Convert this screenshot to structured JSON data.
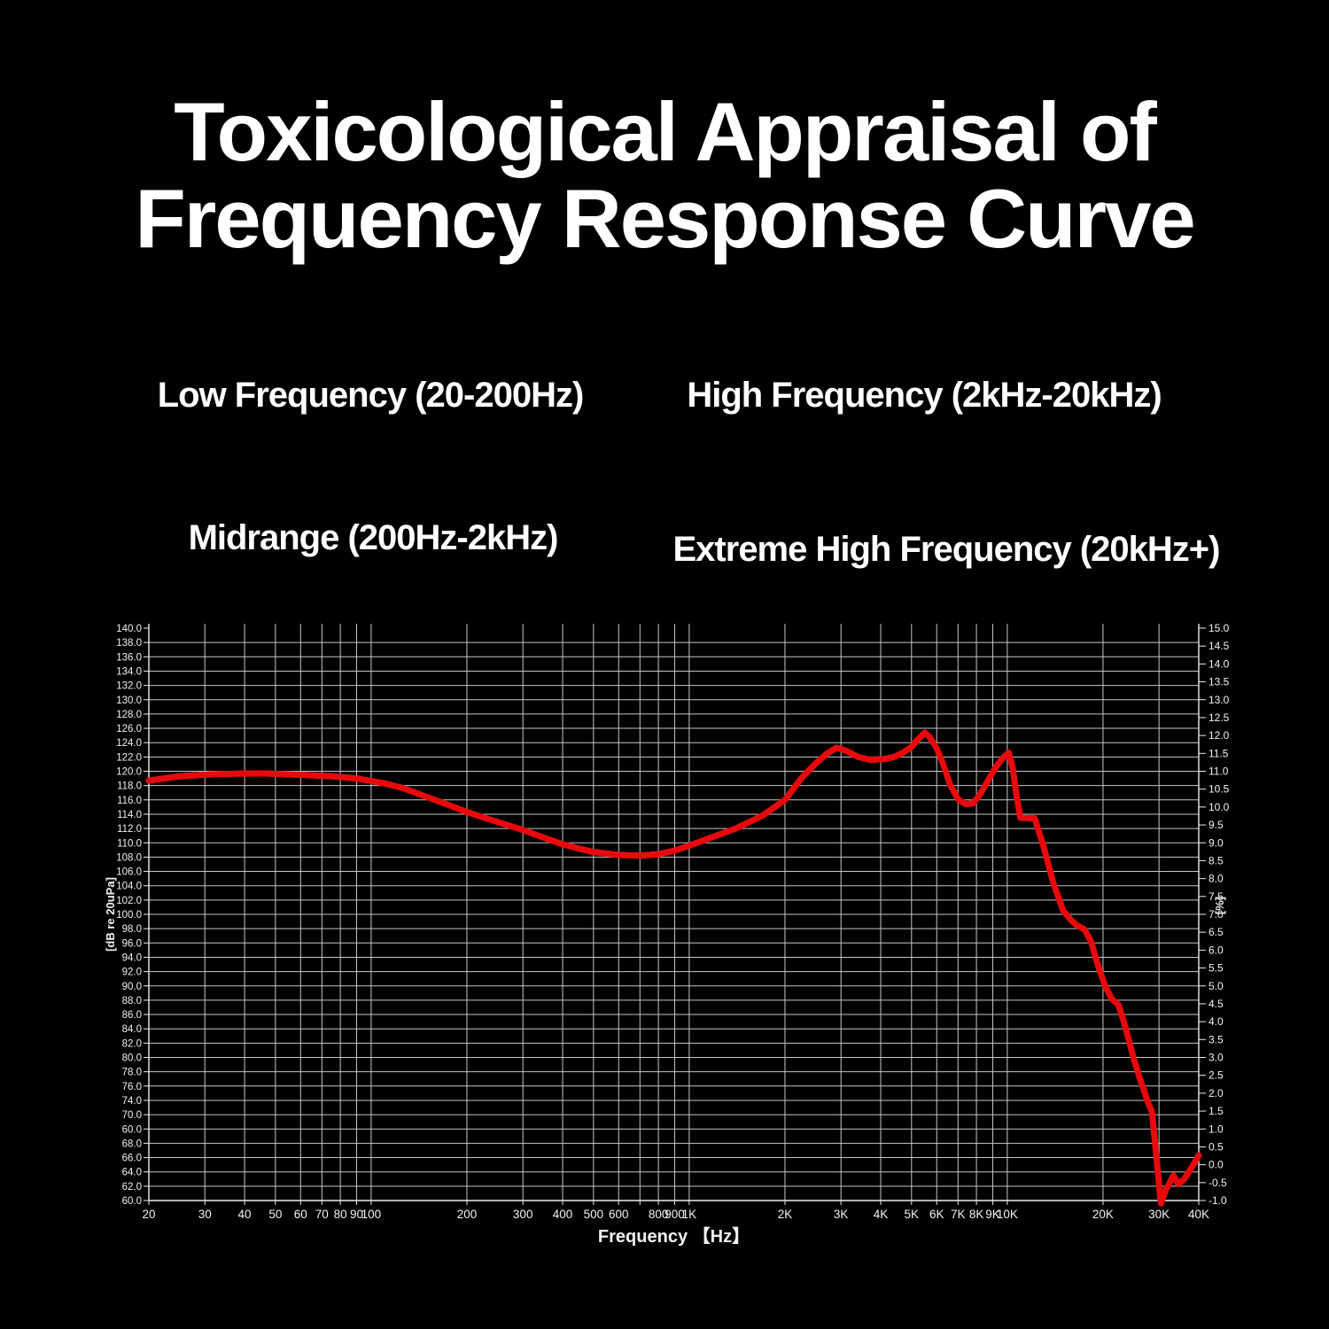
{
  "title": {
    "line1": "Toxicological Appraisal of",
    "line2": "Frequency Response Curve"
  },
  "band_labels": {
    "low": "Low Frequency (20-200Hz)",
    "high": "High Frequency (2kHz-20kHz)",
    "mid": "Midrange (200Hz-2kHz)",
    "extreme": "Extreme High Frequency (20kHz+)"
  },
  "colors": {
    "background": "#000000",
    "title_text": "#ffffff",
    "grid_line": "#c6c6c6",
    "axis_line": "#ececec",
    "tick_text": "#f2f2f2",
    "curve_red": "#e8090c",
    "curve_white": "#ffffff"
  },
  "chart_data": {
    "type": "line",
    "x_scale": "log",
    "xlabel": "Frequency 【Hz】",
    "ylabel_left": "[dB re 20uPa]",
    "ylabel_right": "[%]",
    "x_range_hz": [
      20,
      40000
    ],
    "y_left_range_db": [
      60,
      140
    ],
    "y_right_range_pct": [
      -1.0,
      15.0
    ],
    "grid": true,
    "left_tick_labels": [
      "140.0",
      "138.0",
      "136.0",
      "134.0",
      "132.0",
      "130.0",
      "128.0",
      "126.0",
      "124.0",
      "122.0",
      "120.0",
      "118.0",
      "116.0",
      "114.0",
      "112.0",
      "110.0",
      "108.0",
      "106.0",
      "104.0",
      "102.0",
      "100.0",
      "98.0",
      "96.0",
      "94.0",
      "92.0",
      "90.0",
      "88.0",
      "86.0",
      "84.0",
      "82.0",
      "80.0",
      "78.0",
      "76.0",
      "74.0",
      "70.0",
      "60.0",
      "68.0",
      "66.0",
      "64.0",
      "62.0",
      "60.0"
    ],
    "right_tick_labels": [
      "15.0",
      "14.5",
      "14.0",
      "13.5",
      "13.0",
      "12.5",
      "12.0",
      "11.5",
      "11.0",
      "10.5",
      "10.0",
      "9.5",
      "9.0",
      "8.5",
      "8.0",
      "7.5",
      "7.0",
      "6.5",
      "6.0",
      "5.5",
      "5.0",
      "4.5",
      "4.0",
      "3.5",
      "3.0",
      "2.5",
      "2.0",
      "1.5",
      "1.0",
      "0.5",
      "0.0",
      "-0.5",
      "-1.0"
    ],
    "x_ticks": [
      {
        "f": 20,
        "label": "20"
      },
      {
        "f": 30,
        "label": "30"
      },
      {
        "f": 40,
        "label": "40"
      },
      {
        "f": 50,
        "label": "50"
      },
      {
        "f": 60,
        "label": "60"
      },
      {
        "f": 70,
        "label": "70"
      },
      {
        "f": 80,
        "label": "80"
      },
      {
        "f": 90,
        "label": "90"
      },
      {
        "f": 100,
        "label": "100"
      },
      {
        "f": 200,
        "label": "200"
      },
      {
        "f": 300,
        "label": "300"
      },
      {
        "f": 400,
        "label": "400"
      },
      {
        "f": 500,
        "label": "500"
      },
      {
        "f": 600,
        "label": "600"
      },
      {
        "f": 700,
        "label": ""
      },
      {
        "f": 800,
        "label": "800"
      },
      {
        "f": 900,
        "label": "900"
      },
      {
        "f": 1000,
        "label": "1K"
      },
      {
        "f": 2000,
        "label": "2K"
      },
      {
        "f": 3000,
        "label": "3K"
      },
      {
        "f": 4000,
        "label": "4K"
      },
      {
        "f": 5000,
        "label": "5K"
      },
      {
        "f": 6000,
        "label": "6K"
      },
      {
        "f": 7000,
        "label": "7K"
      },
      {
        "f": 8000,
        "label": "8K"
      },
      {
        "f": 9000,
        "label": "9K"
      },
      {
        "f": 10000,
        "label": "10K"
      },
      {
        "f": 20000,
        "label": "20K"
      },
      {
        "f": 30000,
        "label": "30K"
      },
      {
        "f": 40000,
        "label": "40K"
      }
    ],
    "series": [
      {
        "name": "frequency-response-curve",
        "color": "#e8090c",
        "points_hz_db": [
          [
            20,
            118.7
          ],
          [
            25,
            119.3
          ],
          [
            32,
            119.6
          ],
          [
            45,
            119.7
          ],
          [
            60,
            119.5
          ],
          [
            75,
            119.3
          ],
          [
            90,
            119.0
          ],
          [
            110,
            118.3
          ],
          [
            125,
            117.7
          ],
          [
            150,
            116.4
          ],
          [
            175,
            115.3
          ],
          [
            200,
            114.3
          ],
          [
            250,
            112.9
          ],
          [
            300,
            111.8
          ],
          [
            350,
            110.7
          ],
          [
            400,
            109.8
          ],
          [
            450,
            109.2
          ],
          [
            500,
            108.7
          ],
          [
            600,
            108.3
          ],
          [
            700,
            108.2
          ],
          [
            800,
            108.4
          ],
          [
            900,
            108.9
          ],
          [
            1000,
            109.6
          ],
          [
            1200,
            110.9
          ],
          [
            1400,
            112.0
          ],
          [
            1700,
            113.8
          ],
          [
            2000,
            116.0
          ],
          [
            2250,
            119.0
          ],
          [
            2500,
            121.1
          ],
          [
            2700,
            122.4
          ],
          [
            2900,
            123.3
          ],
          [
            3100,
            122.9
          ],
          [
            3400,
            122.0
          ],
          [
            3700,
            121.6
          ],
          [
            4100,
            121.7
          ],
          [
            4400,
            122.0
          ],
          [
            4700,
            122.6
          ],
          [
            5000,
            123.4
          ],
          [
            5200,
            124.3
          ],
          [
            5500,
            125.4
          ],
          [
            5700,
            124.8
          ],
          [
            6000,
            123.2
          ],
          [
            6300,
            120.9
          ],
          [
            6600,
            118.2
          ],
          [
            7000,
            116.1
          ],
          [
            7400,
            115.4
          ],
          [
            7800,
            115.5
          ],
          [
            8200,
            116.7
          ],
          [
            8700,
            118.7
          ],
          [
            9200,
            120.6
          ],
          [
            9700,
            121.9
          ],
          [
            10100,
            122.6
          ],
          [
            10400,
            120.5
          ],
          [
            10700,
            116.5
          ],
          [
            11000,
            113.5
          ],
          [
            12200,
            113.4
          ],
          [
            13000,
            109.5
          ],
          [
            14000,
            104.2
          ],
          [
            15000,
            100.5
          ],
          [
            15800,
            99.3
          ],
          [
            16500,
            98.5
          ],
          [
            17500,
            97.9
          ],
          [
            18300,
            96.3
          ],
          [
            19300,
            92.8
          ],
          [
            20300,
            90.0
          ],
          [
            21300,
            88.2
          ],
          [
            22400,
            87.3
          ],
          [
            23500,
            84.3
          ],
          [
            25000,
            79.8
          ],
          [
            26000,
            77.3
          ],
          [
            26900,
            75.4
          ],
          [
            27800,
            73.5
          ],
          [
            28500,
            72.4
          ],
          [
            29300,
            67.0
          ],
          [
            30400,
            59.6
          ],
          [
            31600,
            61.6
          ],
          [
            33300,
            63.5
          ],
          [
            34500,
            62.3
          ],
          [
            36000,
            63.0
          ],
          [
            38000,
            64.6
          ],
          [
            40000,
            66.3
          ]
        ]
      }
    ],
    "companion_trace": {
      "name": "secondary-white-trace",
      "color": "#ffffff"
    }
  }
}
